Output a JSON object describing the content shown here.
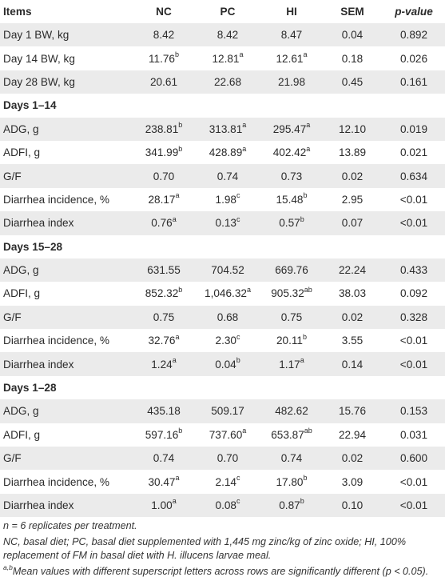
{
  "headers": [
    "Items",
    "NC",
    "PC",
    "HI",
    "SEM",
    "p-value"
  ],
  "rows": [
    {
      "type": "data",
      "label": "Day 1 BW, kg",
      "cells": [
        [
          "8.42",
          ""
        ],
        [
          "8.42",
          ""
        ],
        [
          "8.47",
          ""
        ],
        [
          "0.04",
          ""
        ],
        [
          "0.892",
          ""
        ]
      ]
    },
    {
      "type": "data",
      "label": "Day 14 BW, kg",
      "cells": [
        [
          "11.76",
          "b"
        ],
        [
          "12.81",
          "a"
        ],
        [
          "12.61",
          "a"
        ],
        [
          "0.18",
          ""
        ],
        [
          "0.026",
          ""
        ]
      ]
    },
    {
      "type": "data",
      "label": "Day 28 BW, kg",
      "cells": [
        [
          "20.61",
          ""
        ],
        [
          "22.68",
          ""
        ],
        [
          "21.98",
          ""
        ],
        [
          "0.45",
          ""
        ],
        [
          "0.161",
          ""
        ]
      ]
    },
    {
      "type": "section",
      "label": "Days 1–14"
    },
    {
      "type": "data",
      "label": "ADG, g",
      "cells": [
        [
          "238.81",
          "b"
        ],
        [
          "313.81",
          "a"
        ],
        [
          "295.47",
          "a"
        ],
        [
          "12.10",
          ""
        ],
        [
          "0.019",
          ""
        ]
      ]
    },
    {
      "type": "data",
      "label": "ADFI, g",
      "cells": [
        [
          "341.99",
          "b"
        ],
        [
          "428.89",
          "a"
        ],
        [
          "402.42",
          "a"
        ],
        [
          "13.89",
          ""
        ],
        [
          "0.021",
          ""
        ]
      ]
    },
    {
      "type": "data",
      "label": "G/F",
      "cells": [
        [
          "0.70",
          ""
        ],
        [
          "0.74",
          ""
        ],
        [
          "0.73",
          ""
        ],
        [
          "0.02",
          ""
        ],
        [
          "0.634",
          ""
        ]
      ]
    },
    {
      "type": "data",
      "label": "Diarrhea incidence, %",
      "cells": [
        [
          "28.17",
          "a"
        ],
        [
          "1.98",
          "c"
        ],
        [
          "15.48",
          "b"
        ],
        [
          "2.95",
          ""
        ],
        [
          "<0.01",
          ""
        ]
      ]
    },
    {
      "type": "data",
      "label": "Diarrhea index",
      "cells": [
        [
          "0.76",
          "a"
        ],
        [
          "0.13",
          "c"
        ],
        [
          "0.57",
          "b"
        ],
        [
          "0.07",
          ""
        ],
        [
          "<0.01",
          ""
        ]
      ]
    },
    {
      "type": "section",
      "label": "Days 15–28"
    },
    {
      "type": "data",
      "label": "ADG, g",
      "cells": [
        [
          "631.55",
          ""
        ],
        [
          "704.52",
          ""
        ],
        [
          "669.76",
          ""
        ],
        [
          "22.24",
          ""
        ],
        [
          "0.433",
          ""
        ]
      ]
    },
    {
      "type": "data",
      "label": "ADFI, g",
      "cells": [
        [
          "852.32",
          "b"
        ],
        [
          "1,046.32",
          "a"
        ],
        [
          "905.32",
          "ab"
        ],
        [
          "38.03",
          ""
        ],
        [
          "0.092",
          ""
        ]
      ]
    },
    {
      "type": "data",
      "label": "G/F",
      "cells": [
        [
          "0.75",
          ""
        ],
        [
          "0.68",
          ""
        ],
        [
          "0.75",
          ""
        ],
        [
          "0.02",
          ""
        ],
        [
          "0.328",
          ""
        ]
      ]
    },
    {
      "type": "data",
      "label": "Diarrhea incidence, %",
      "cells": [
        [
          "32.76",
          "a"
        ],
        [
          "2.30",
          "c"
        ],
        [
          "20.11",
          "b"
        ],
        [
          "3.55",
          ""
        ],
        [
          "<0.01",
          ""
        ]
      ]
    },
    {
      "type": "data",
      "label": "Diarrhea index",
      "cells": [
        [
          "1.24",
          "a"
        ],
        [
          "0.04",
          "b"
        ],
        [
          "1.17",
          "a"
        ],
        [
          "0.14",
          ""
        ],
        [
          "<0.01",
          ""
        ]
      ]
    },
    {
      "type": "section",
      "label": "Days 1–28"
    },
    {
      "type": "data",
      "label": "ADG, g",
      "cells": [
        [
          "435.18",
          ""
        ],
        [
          "509.17",
          ""
        ],
        [
          "482.62",
          ""
        ],
        [
          "15.76",
          ""
        ],
        [
          "0.153",
          ""
        ]
      ]
    },
    {
      "type": "data",
      "label": "ADFI, g",
      "cells": [
        [
          "597.16",
          "b"
        ],
        [
          "737.60",
          "a"
        ],
        [
          "653.87",
          "ab"
        ],
        [
          "22.94",
          ""
        ],
        [
          "0.031",
          ""
        ]
      ]
    },
    {
      "type": "data",
      "label": "G/F",
      "cells": [
        [
          "0.74",
          ""
        ],
        [
          "0.70",
          ""
        ],
        [
          "0.74",
          ""
        ],
        [
          "0.02",
          ""
        ],
        [
          "0.600",
          ""
        ]
      ]
    },
    {
      "type": "data",
      "label": "Diarrhea incidence, %",
      "cells": [
        [
          "30.47",
          "a"
        ],
        [
          "2.14",
          "c"
        ],
        [
          "17.80",
          "b"
        ],
        [
          "3.09",
          ""
        ],
        [
          "<0.01",
          ""
        ]
      ]
    },
    {
      "type": "data",
      "label": "Diarrhea index",
      "cells": [
        [
          "1.00",
          "a"
        ],
        [
          "0.08",
          "c"
        ],
        [
          "0.87",
          "b"
        ],
        [
          "0.10",
          ""
        ],
        [
          "<0.01",
          ""
        ]
      ]
    }
  ],
  "footnotes": {
    "note1": "n = 6 replicates per treatment.",
    "note2": "NC, basal diet; PC, basal diet supplemented with 1,445 mg zinc/kg of zinc oxide; HI, 100% replacement of FM in basal diet with H. illucens larvae meal.",
    "note3_sup": "a,b",
    "note3": "Mean values with different superscript letters across rows are significantly different (p < 0.05)."
  },
  "colors": {
    "stripe": "#ebebeb",
    "text": "#2b2b2b"
  }
}
